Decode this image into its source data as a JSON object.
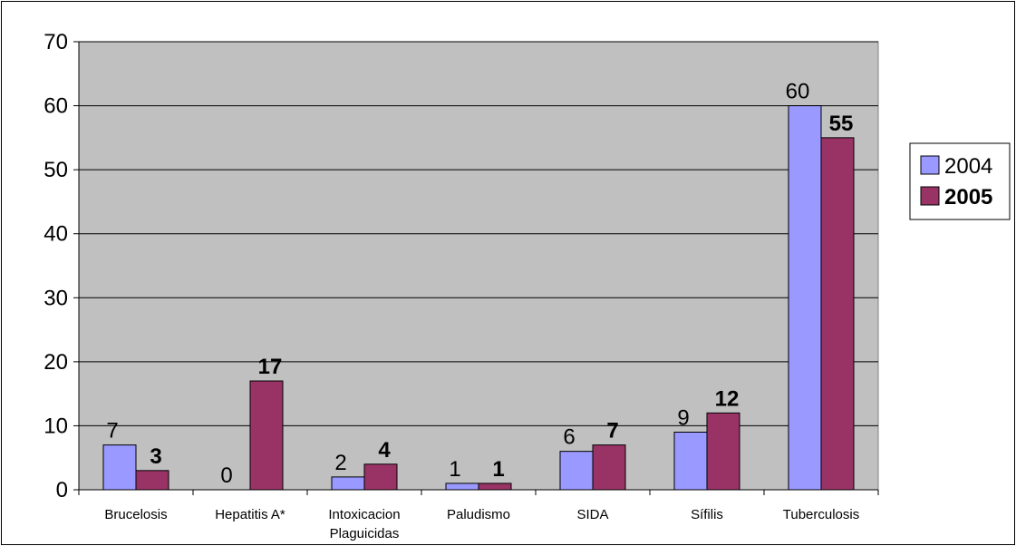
{
  "chart_data": {
    "type": "bar",
    "categories": [
      "Brucelosis",
      "Hepatitis A*",
      "Intoxicacion Plaguicidas",
      "Paludismo",
      "SIDA",
      "Sífilis",
      "Tuberculosis"
    ],
    "category_lines": [
      [
        "Brucelosis"
      ],
      [
        "Hepatitis A*"
      ],
      [
        "Intoxicacion",
        "Plaguicidas"
      ],
      [
        "Paludismo"
      ],
      [
        "SIDA"
      ],
      [
        "Sífilis"
      ],
      [
        "Tuberculosis"
      ]
    ],
    "series": [
      {
        "name": "2004",
        "values": [
          7,
          0,
          2,
          1,
          6,
          9,
          60
        ],
        "color": "#9999ff"
      },
      {
        "name": "2005",
        "values": [
          3,
          17,
          4,
          1,
          7,
          12,
          55
        ],
        "color": "#993366"
      }
    ],
    "yticks": [
      "0",
      "10",
      "20",
      "30",
      "40",
      "50",
      "60",
      "70"
    ],
    "ylim": [
      0,
      70
    ],
    "grid": true,
    "plot_background": "#c0c0c0",
    "legend": {
      "position": "right",
      "items": [
        "2004",
        "2005"
      ]
    }
  }
}
